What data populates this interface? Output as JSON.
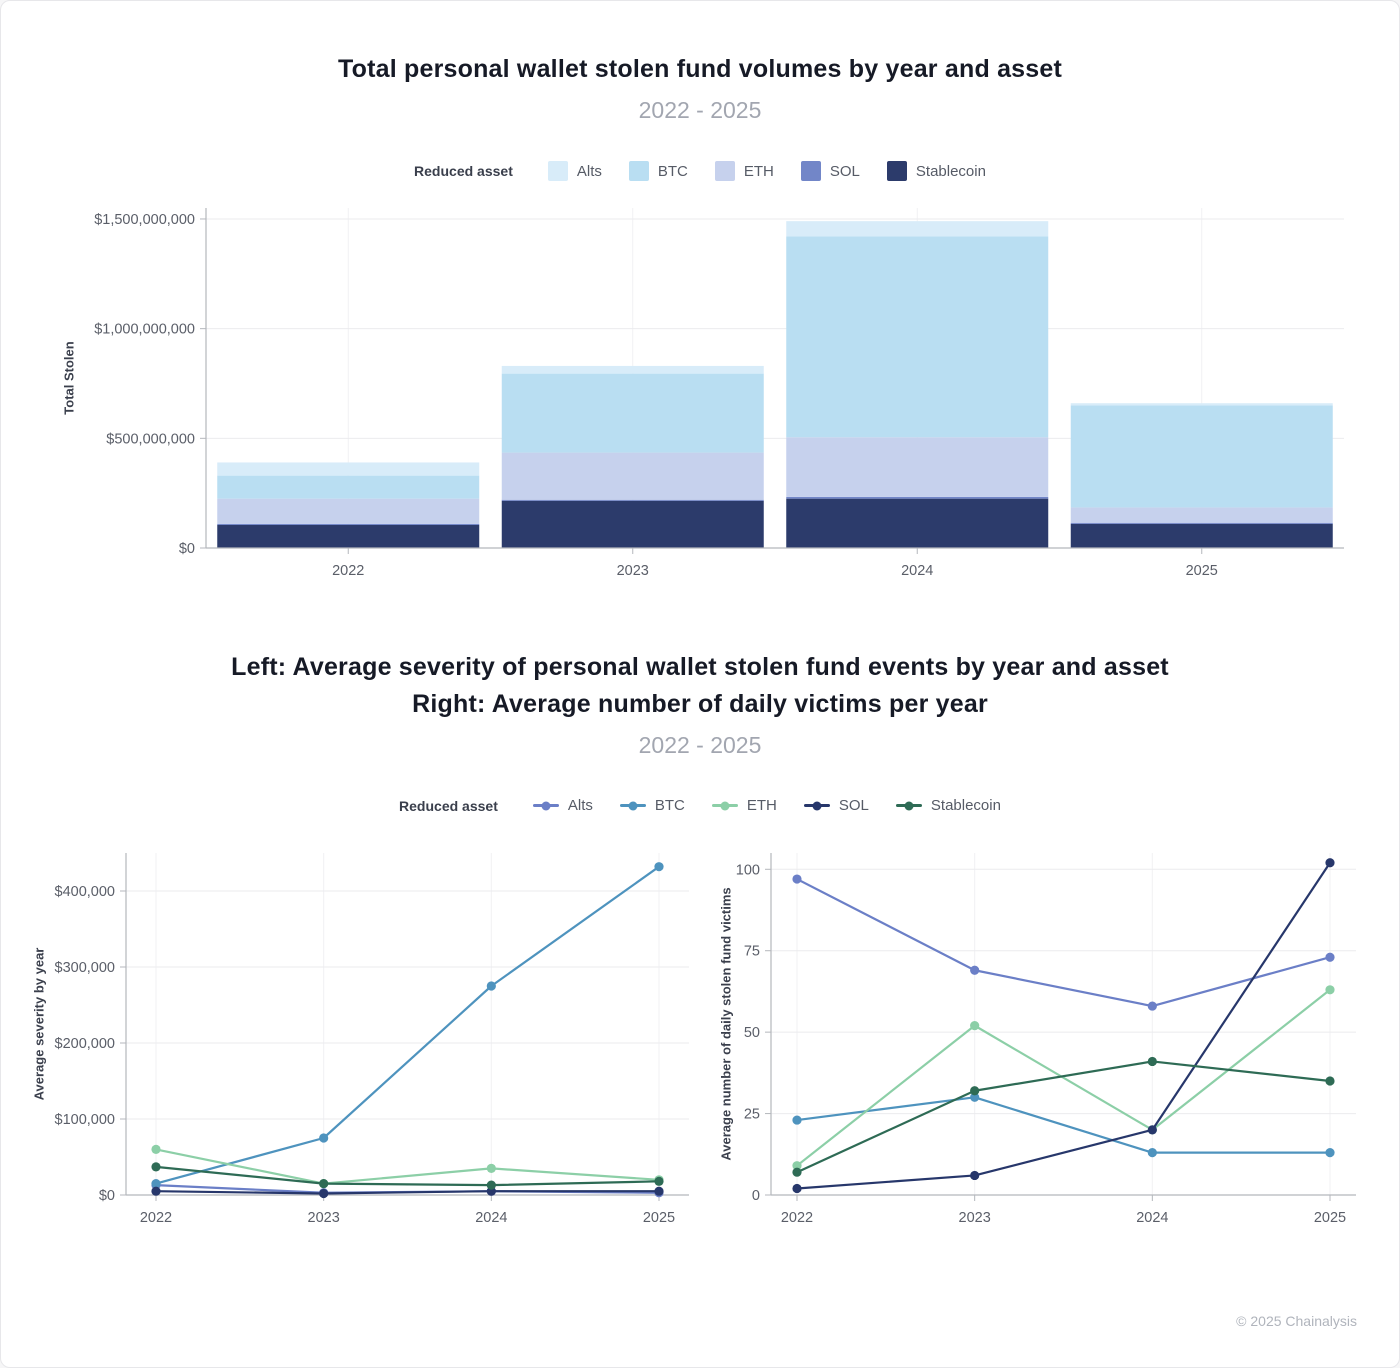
{
  "page": {
    "footer": "© 2025 Chainalysis"
  },
  "bar_chart": {
    "title": "Total personal wallet stolen fund volumes by year and asset",
    "subtitle": "2022 - 2025",
    "legend_title": "Reduced asset",
    "ylabel": "Total Stolen"
  },
  "line_charts": {
    "title_line1": "Left: Average severity of personal wallet stolen fund events by year and asset",
    "title_line2": "Right: Average number of daily victims per year",
    "subtitle": "2022 - 2025",
    "legend_title": "Reduced asset",
    "left_ylabel": "Average severity by year",
    "right_ylabel": "Average number of daily stolen fund victims"
  },
  "chart_data": [
    {
      "type": "bar",
      "stacked": true,
      "title": "Total personal wallet stolen fund volumes by year and asset",
      "subtitle": "2022 - 2025",
      "ylabel": "Total Stolen",
      "legend_title": "Reduced asset",
      "legend_position": "top",
      "grid": true,
      "categories": [
        "2022",
        "2023",
        "2024",
        "2025"
      ],
      "series": [
        {
          "name": "Alts",
          "color": "#d8ecf9",
          "values": [
            60000000,
            35000000,
            70000000,
            10000000
          ]
        },
        {
          "name": "BTC",
          "color": "#b9def2",
          "values": [
            105000000,
            360000000,
            915000000,
            465000000
          ]
        },
        {
          "name": "ETH",
          "color": "#c6d1ed",
          "values": [
            115000000,
            215000000,
            272000000,
            70000000
          ]
        },
        {
          "name": "SOL",
          "color": "#7286c8",
          "values": [
            5000000,
            5000000,
            8000000,
            5000000
          ]
        },
        {
          "name": "Stablecoin",
          "color": "#2c3b6b",
          "values": [
            105000000,
            215000000,
            225000000,
            110000000
          ]
        }
      ],
      "ylim": [
        0,
        1550000000
      ],
      "yticks": [
        0,
        500000000,
        1000000000,
        1500000000
      ],
      "ytick_labels": [
        "$0",
        "$500,000,000",
        "$1,000,000,000",
        "$1,500,000,000"
      ]
    },
    {
      "type": "line",
      "title": "Average severity of personal wallet stolen fund events by year and asset",
      "ylabel": "Average severity by year",
      "legend_title": "Reduced asset",
      "grid": true,
      "categories": [
        "2022",
        "2023",
        "2024",
        "2025"
      ],
      "series": [
        {
          "name": "Alts",
          "color": "#6b7fc7",
          "values": [
            13000,
            3000,
            5000,
            3000
          ]
        },
        {
          "name": "BTC",
          "color": "#4e93be",
          "values": [
            15000,
            75000,
            275000,
            432000
          ]
        },
        {
          "name": "ETH",
          "color": "#8ccfa7",
          "values": [
            60000,
            15000,
            35000,
            20000
          ]
        },
        {
          "name": "SOL",
          "color": "#27376b",
          "values": [
            5000,
            2000,
            5000,
            5000
          ]
        },
        {
          "name": "Stablecoin",
          "color": "#2e6b55",
          "values": [
            37000,
            15000,
            13000,
            18000
          ]
        }
      ],
      "ylim": [
        0,
        450000
      ],
      "yticks": [
        0,
        100000,
        200000,
        300000,
        400000
      ],
      "ytick_labels": [
        "$0",
        "$100,000",
        "$200,000",
        "$300,000",
        "$400,000"
      ]
    },
    {
      "type": "line",
      "title": "Average number of daily victims per year",
      "ylabel": "Average number of daily stolen fund victims",
      "legend_title": "Reduced asset",
      "grid": true,
      "categories": [
        "2022",
        "2023",
        "2024",
        "2025"
      ],
      "series": [
        {
          "name": "Alts",
          "color": "#6b7fc7",
          "values": [
            97,
            69,
            58,
            73
          ]
        },
        {
          "name": "BTC",
          "color": "#4e93be",
          "values": [
            23,
            30,
            13,
            13
          ]
        },
        {
          "name": "ETH",
          "color": "#8ccfa7",
          "values": [
            9,
            52,
            20,
            63
          ]
        },
        {
          "name": "SOL",
          "color": "#27376b",
          "values": [
            2,
            6,
            20,
            102
          ]
        },
        {
          "name": "Stablecoin",
          "color": "#2e6b55",
          "values": [
            7,
            32,
            41,
            35
          ]
        }
      ],
      "ylim": [
        0,
        105
      ],
      "yticks": [
        0,
        25,
        50,
        75,
        100
      ],
      "ytick_labels": [
        "0",
        "25",
        "50",
        "75",
        "100"
      ]
    }
  ]
}
